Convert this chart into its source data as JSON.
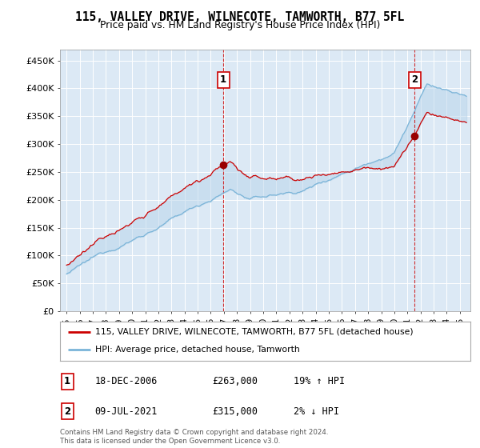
{
  "title": "115, VALLEY DRIVE, WILNECOTE, TAMWORTH, B77 5FL",
  "subtitle": "Price paid vs. HM Land Registry's House Price Index (HPI)",
  "background_color": "#ffffff",
  "plot_bg_color": "#dce9f5",
  "fill_color": "#c0d8ee",
  "hpi_color": "#7ab4d8",
  "price_color": "#cc0000",
  "sale1_year": 2006.96,
  "sale1_price": 263000,
  "sale2_year": 2021.54,
  "sale2_price": 315000,
  "legend_line1": "115, VALLEY DRIVE, WILNECOTE, TAMWORTH, B77 5FL (detached house)",
  "legend_line2": "HPI: Average price, detached house, Tamworth",
  "footer": "Contains HM Land Registry data © Crown copyright and database right 2024.\nThis data is licensed under the Open Government Licence v3.0.",
  "ylim": [
    0,
    470000
  ],
  "yticks": [
    0,
    50000,
    100000,
    150000,
    200000,
    250000,
    300000,
    350000,
    400000,
    450000
  ],
  "ytick_labels": [
    "£0",
    "£50K",
    "£100K",
    "£150K",
    "£200K",
    "£250K",
    "£300K",
    "£350K",
    "£400K",
    "£450K"
  ],
  "xmin": 1994.5,
  "xmax": 2025.8,
  "year_start": 1995,
  "year_end": 2025
}
